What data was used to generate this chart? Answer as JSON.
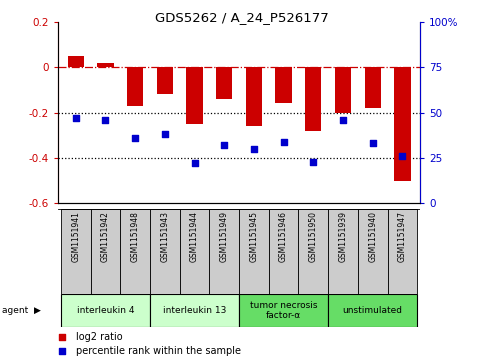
{
  "title": "GDS5262 / A_24_P526177",
  "samples": [
    "GSM1151941",
    "GSM1151942",
    "GSM1151948",
    "GSM1151943",
    "GSM1151944",
    "GSM1151949",
    "GSM1151945",
    "GSM1151946",
    "GSM1151950",
    "GSM1151939",
    "GSM1151940",
    "GSM1151947"
  ],
  "log2_ratio": [
    0.05,
    0.02,
    -0.17,
    -0.12,
    -0.25,
    -0.14,
    -0.26,
    -0.16,
    -0.28,
    -0.2,
    -0.18,
    -0.5
  ],
  "percentile_rank": [
    47,
    46,
    36,
    38,
    22,
    32,
    30,
    34,
    23,
    46,
    33,
    26
  ],
  "ylim_left": [
    -0.6,
    0.2
  ],
  "ylim_right": [
    0,
    100
  ],
  "yticks_left": [
    -0.6,
    -0.4,
    -0.2,
    0.0,
    0.2
  ],
  "ytick_labels_left": [
    "-0.6",
    "-0.4",
    "-0.2",
    "0",
    "0.2"
  ],
  "yticks_right": [
    0,
    25,
    50,
    75,
    100
  ],
  "ytick_labels_right": [
    "0",
    "25",
    "50",
    "75",
    "100%"
  ],
  "bar_color": "#cc0000",
  "dot_color": "#0000cc",
  "zero_line_color": "#cc0000",
  "dotted_line_color": "#000000",
  "sample_box_color": "#cccccc",
  "agent_groups": [
    {
      "label": "interleukin 4",
      "start": 0,
      "end": 3,
      "color": "#ccffcc"
    },
    {
      "label": "interleukin 13",
      "start": 3,
      "end": 6,
      "color": "#ccffcc"
    },
    {
      "label": "tumor necrosis\nfactor-α",
      "start": 6,
      "end": 9,
      "color": "#66dd66"
    },
    {
      "label": "unstimulated",
      "start": 9,
      "end": 12,
      "color": "#66dd66"
    }
  ],
  "legend_items": [
    {
      "label": "log2 ratio",
      "color": "#cc0000"
    },
    {
      "label": "percentile rank within the sample",
      "color": "#0000cc"
    }
  ],
  "fig_width": 4.83,
  "fig_height": 3.63
}
